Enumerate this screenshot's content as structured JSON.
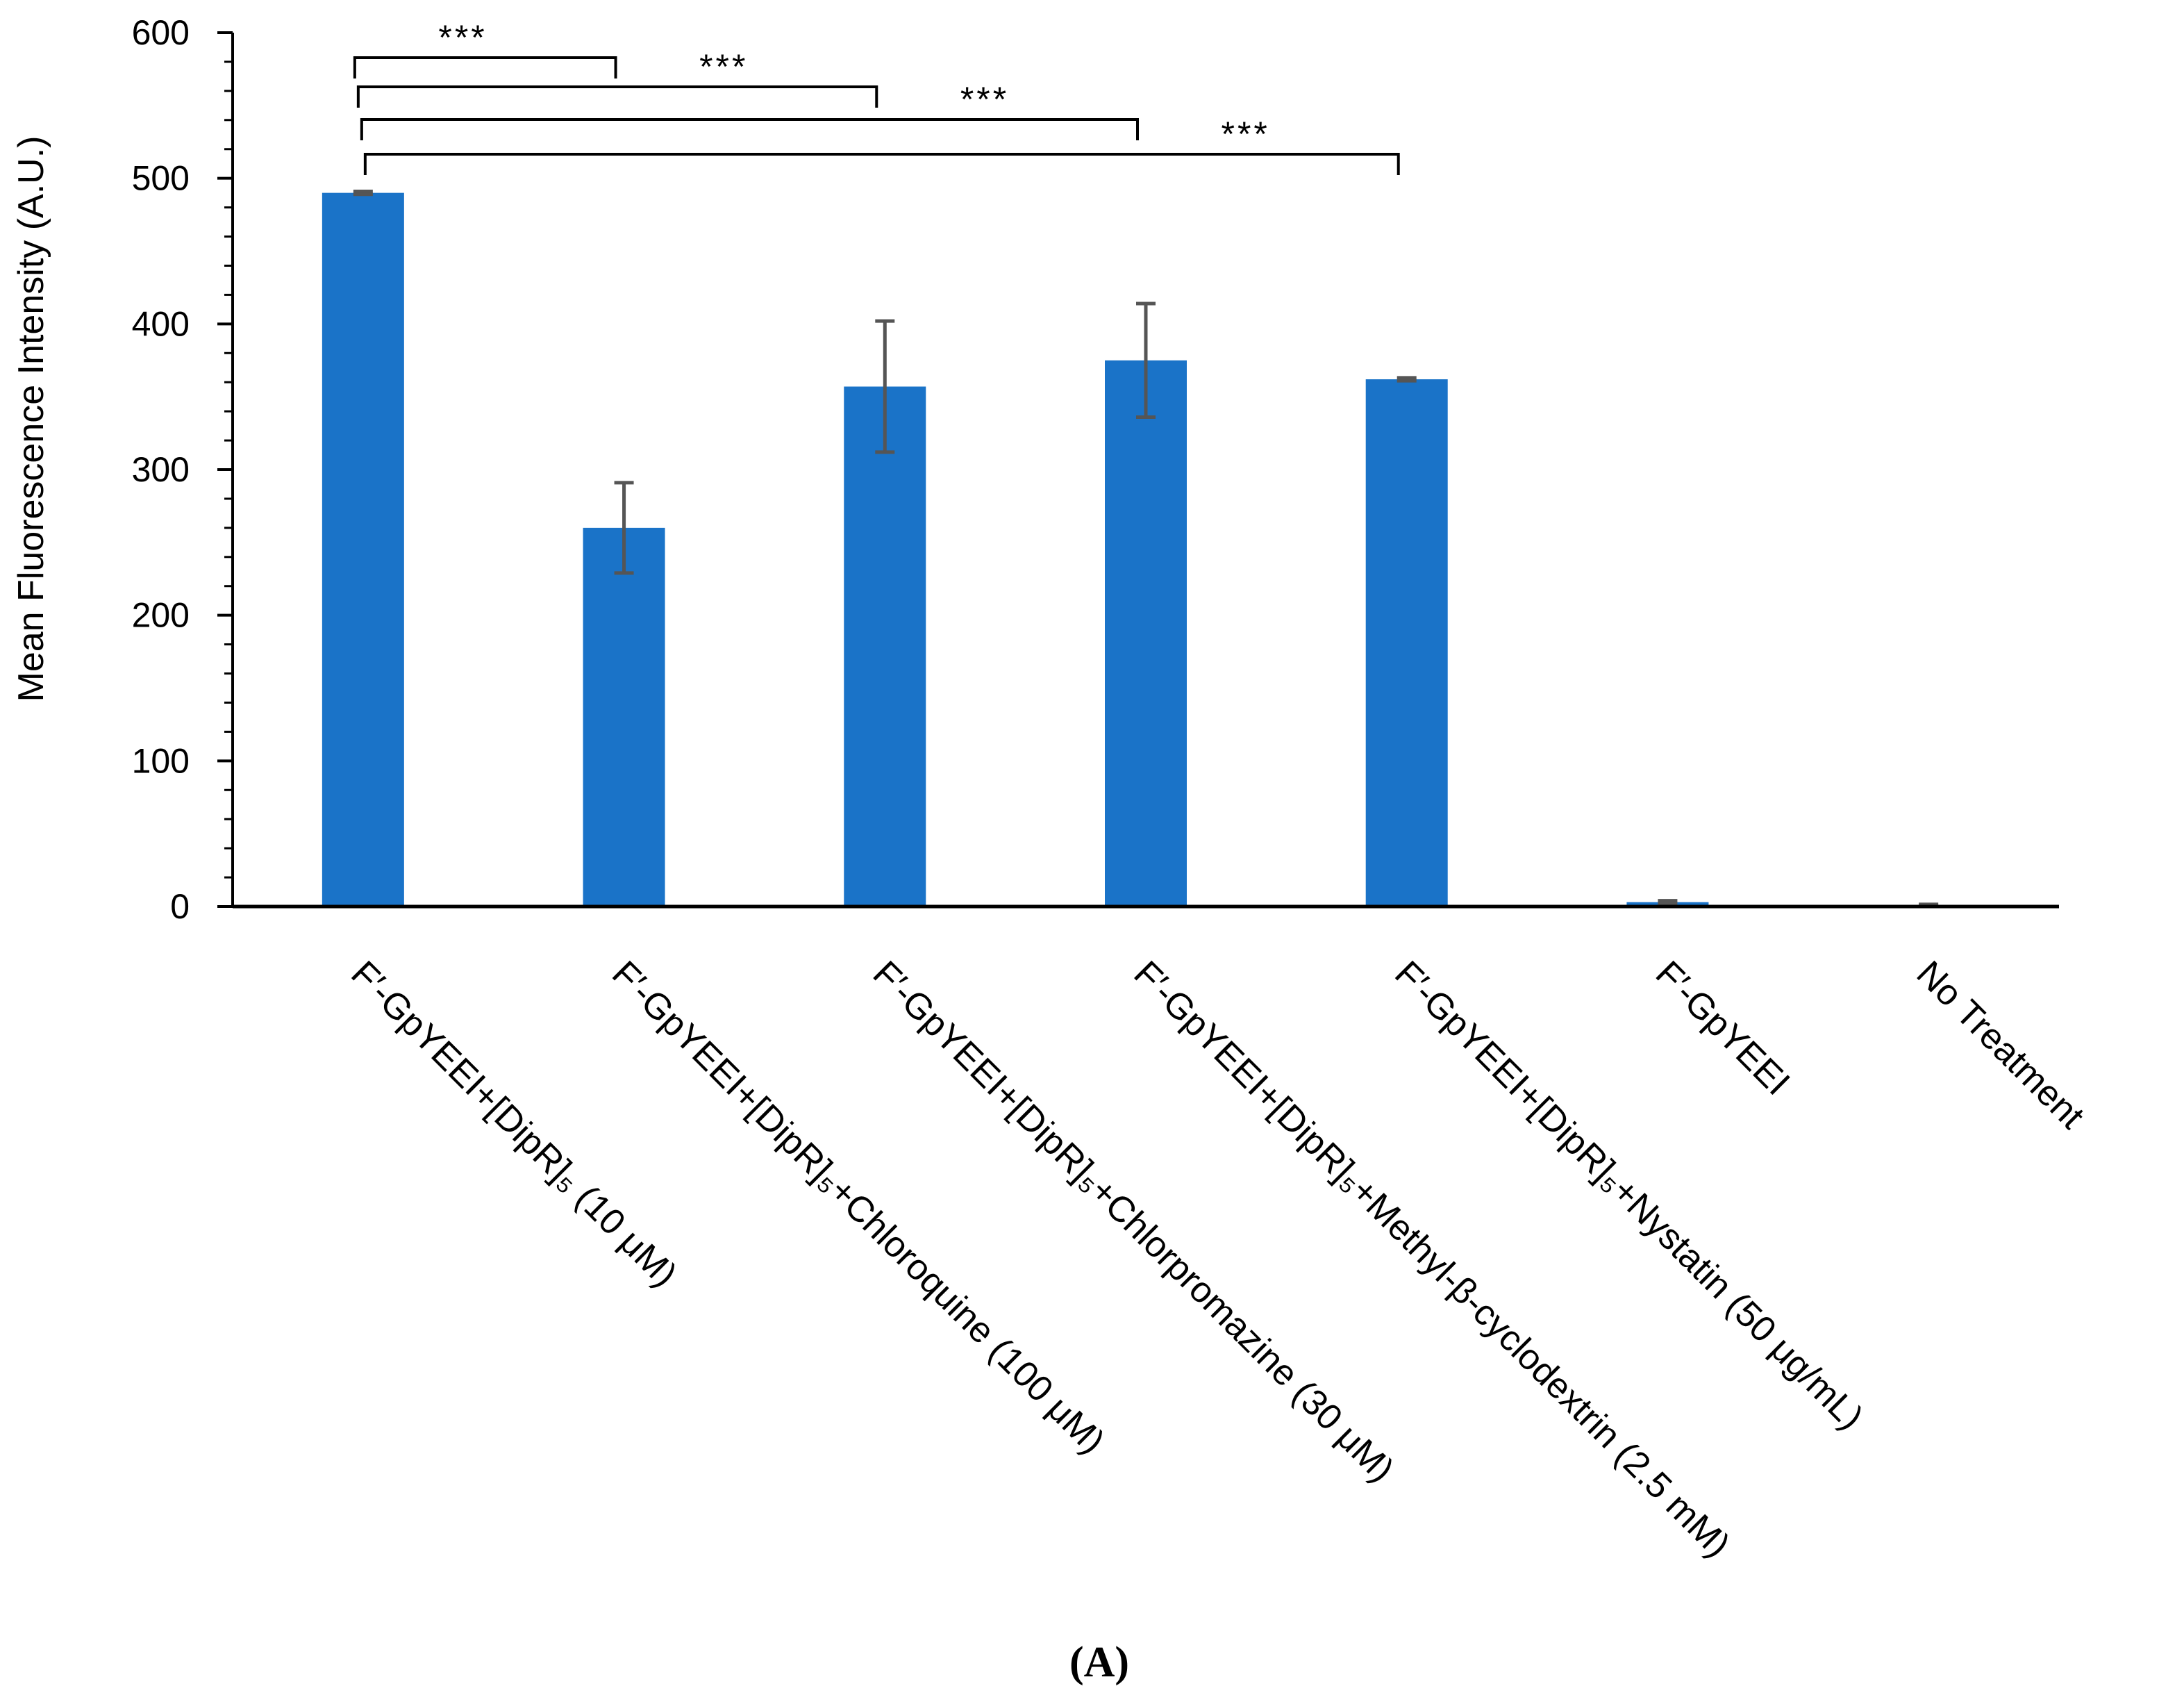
{
  "chart_data": {
    "type": "bar",
    "ylabel": "Mean Fluorescence Intensity (A.U.)",
    "xlabel": "",
    "ylim": [
      0,
      600
    ],
    "yticks": [
      "0",
      "100",
      "200",
      "300",
      "400",
      "500",
      "600"
    ],
    "categories": [
      "F′-GpYEEI+[DipR]₅ (10 μM)",
      "F′-GpYEEI+[DipR]₅+Chloroquine (100 μM)",
      "F′-GpYEEI+[DipR]₅+Chlorpromazine (30 μM)",
      "F′-GpYEEI+[DipR]₅+Methyl-β-cyclodextrin (2.5 mM)",
      "F′-GpYEEI+[DipR]₅+Nystatin (50 μg/mL)",
      "F′-GpYEEI",
      "No Treatment"
    ],
    "values": [
      490,
      260,
      357,
      375,
      362,
      3,
      1
    ],
    "errors": [
      1,
      31,
      45,
      39,
      1,
      1,
      0.5
    ],
    "bar_color": "#1a73c8",
    "error_color": "#555555",
    "grid": false,
    "significance": [
      {
        "from": 0,
        "to": 1,
        "label": "***"
      },
      {
        "from": 0,
        "to": 2,
        "label": "***"
      },
      {
        "from": 0,
        "to": 3,
        "label": "***"
      },
      {
        "from": 0,
        "to": 4,
        "label": "***"
      }
    ]
  },
  "panel_label": "(A)"
}
